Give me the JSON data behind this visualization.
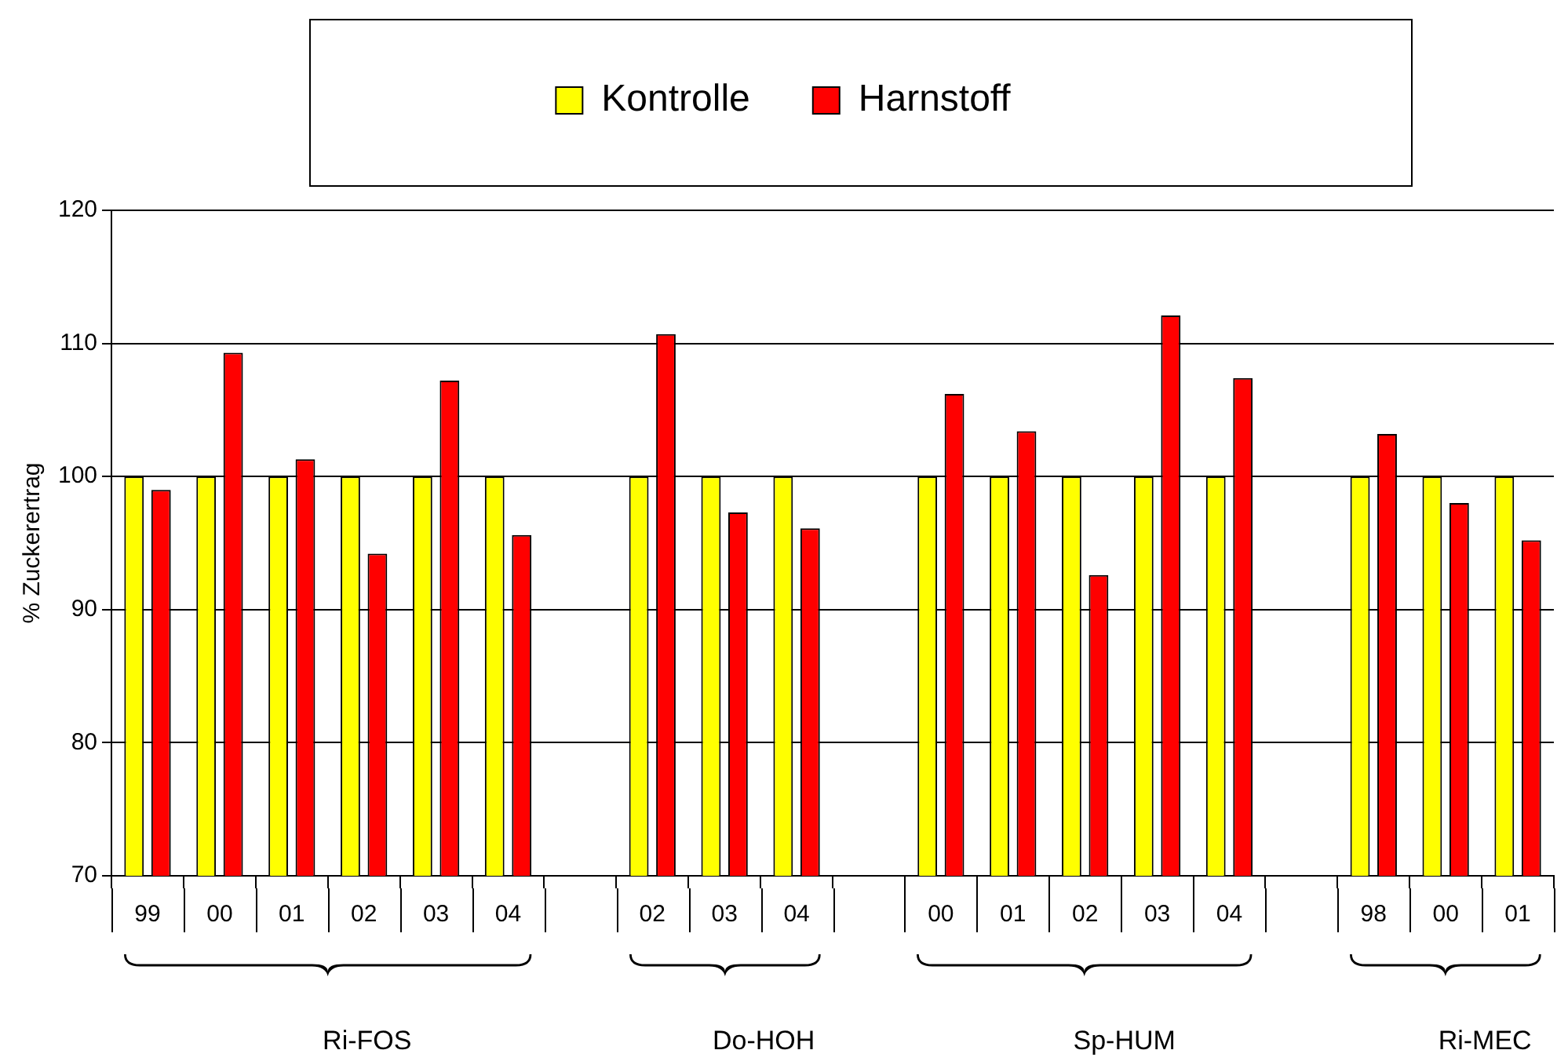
{
  "chart_data": {
    "type": "bar",
    "ylabel": "% Zuckerertrag",
    "categories": [
      "99",
      "00",
      "01",
      "02",
      "03",
      "04",
      null,
      "02",
      "03",
      "04",
      null,
      "00",
      "01",
      "02",
      "03",
      "04",
      null,
      "98",
      "00",
      "01"
    ],
    "series": [
      {
        "name": "Kontrolle",
        "color": "#ffff00",
        "values": [
          100,
          100,
          100,
          100,
          100,
          100,
          null,
          100,
          100,
          100,
          null,
          100,
          100,
          100,
          100,
          100,
          null,
          100,
          100,
          100
        ]
      },
      {
        "name": "Harnstoff",
        "color": "#ff0000",
        "values": [
          99.0,
          109.3,
          101.3,
          94.2,
          107.2,
          95.6,
          null,
          110.7,
          97.3,
          96.1,
          null,
          106.2,
          103.4,
          92.6,
          112.1,
          107.4,
          null,
          103.2,
          98.0,
          95.2
        ]
      }
    ],
    "ylim": [
      70,
      120
    ],
    "yticks": [
      70,
      80,
      90,
      100,
      110,
      120
    ],
    "grid": "y",
    "legend": "top",
    "annotations": [
      "Ri-FOS",
      "Do-HOH",
      "Sp-HUM",
      "Ri-MEC"
    ]
  }
}
